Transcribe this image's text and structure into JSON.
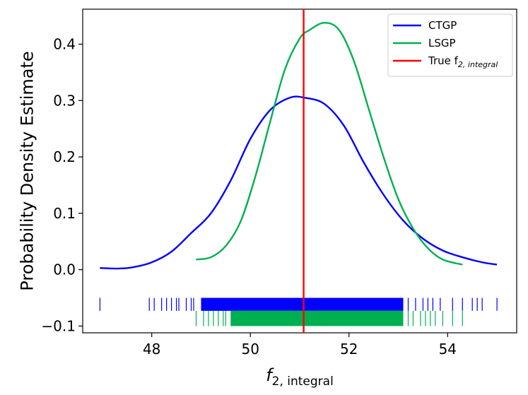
{
  "chart_data": {
    "type": "line",
    "title": "",
    "xlabel": "f",
    "xlabel_sub": "2, integral",
    "ylabel": "Probability Density Estimate",
    "xlim": [
      46.6,
      55.4
    ],
    "ylim": [
      -0.112,
      0.462
    ],
    "xticks": [
      48,
      50,
      52,
      54
    ],
    "yticks": [
      0.0,
      0.1,
      0.2,
      0.3,
      0.4,
      -0.1
    ],
    "ytick_labels": [
      "0.0",
      "0.1",
      "0.2",
      "0.3",
      "0.4",
      "−0.1"
    ],
    "legend": {
      "position": "top-right",
      "entries": [
        {
          "label": "CTGP",
          "color": "#0000ff"
        },
        {
          "label": "LSGP",
          "color": "#00b050"
        },
        {
          "label": "True f",
          "label_sub": "2, integral",
          "color": "#ff0000"
        }
      ]
    },
    "series": [
      {
        "name": "CTGP",
        "color": "#0000ff",
        "x": [
          46.95,
          47.3,
          47.6,
          48.0,
          48.4,
          48.8,
          49.2,
          49.6,
          50.0,
          50.4,
          50.8,
          51.1,
          51.5,
          51.9,
          52.3,
          52.7,
          53.1,
          53.5,
          53.9,
          54.3,
          54.7,
          55.0
        ],
        "y": [
          0.003,
          0.002,
          0.004,
          0.013,
          0.032,
          0.065,
          0.1,
          0.158,
          0.232,
          0.283,
          0.305,
          0.305,
          0.294,
          0.255,
          0.19,
          0.133,
          0.087,
          0.055,
          0.034,
          0.022,
          0.013,
          0.009
        ]
      },
      {
        "name": "LSGP",
        "color": "#00b050",
        "x": [
          48.9,
          49.2,
          49.5,
          49.8,
          50.1,
          50.4,
          50.7,
          51.0,
          51.2,
          51.5,
          51.8,
          52.1,
          52.4,
          52.7,
          53.0,
          53.3,
          53.6,
          53.9,
          54.3
        ],
        "y": [
          0.018,
          0.022,
          0.042,
          0.085,
          0.165,
          0.262,
          0.355,
          0.41,
          0.425,
          0.438,
          0.425,
          0.37,
          0.285,
          0.2,
          0.125,
          0.073,
          0.038,
          0.018,
          0.009
        ]
      }
    ],
    "reference_line": {
      "name": "True f2,integral",
      "x": 51.08,
      "color": "#ff0000"
    },
    "rug": [
      {
        "name": "CTGP samples",
        "color": "#0000ff",
        "y_range": [
          -0.073,
          -0.05
        ],
        "x_min": 46.95,
        "x_max": 55.0,
        "dense_range": [
          49.0,
          53.1
        ],
        "outliers": [
          46.95,
          47.95,
          48.05,
          48.2,
          48.3,
          48.4,
          48.5,
          48.55,
          48.7,
          48.8,
          48.85,
          53.2,
          53.35,
          53.5,
          53.6,
          53.7,
          53.85,
          54.1,
          54.3,
          54.5,
          54.6,
          54.7,
          55.0
        ]
      },
      {
        "name": "LSGP samples",
        "color": "#00b050",
        "y_range": [
          -0.1,
          -0.073
        ],
        "x_min": 48.9,
        "x_max": 54.3,
        "dense_range": [
          49.6,
          53.1
        ],
        "outliers": [
          48.9,
          49.05,
          49.15,
          49.25,
          49.35,
          49.45,
          49.5,
          53.2,
          53.3,
          53.45,
          53.55,
          53.65,
          53.75,
          53.9,
          54.1,
          54.3
        ]
      }
    ]
  }
}
